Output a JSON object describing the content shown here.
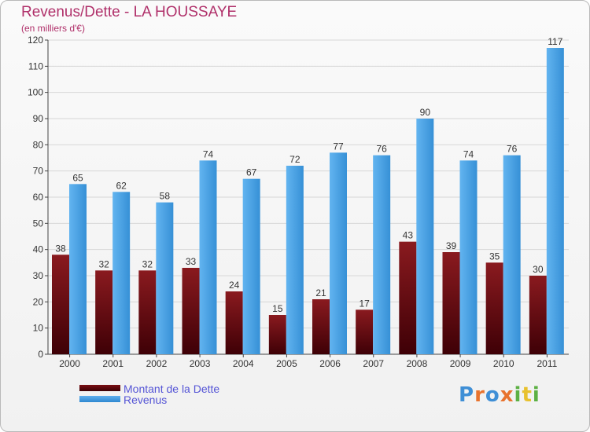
{
  "chart_data": {
    "type": "bar",
    "title": "Revenus/Dette - LA HOUSSAYE",
    "subtitle": "(en milliers d'€)",
    "categories": [
      "2000",
      "2001",
      "2002",
      "2003",
      "2004",
      "2005",
      "2006",
      "2007",
      "2008",
      "2009",
      "2010",
      "2011"
    ],
    "series": [
      {
        "name": "Montant de la Dette",
        "values": [
          38,
          32,
          32,
          33,
          24,
          15,
          21,
          17,
          43,
          39,
          35,
          30
        ],
        "color": "#6a0a10"
      },
      {
        "name": "Revenus",
        "values": [
          65,
          62,
          58,
          74,
          67,
          72,
          77,
          76,
          90,
          74,
          76,
          117
        ],
        "color": "#4aa3e8"
      }
    ],
    "ylim": [
      0,
      120
    ],
    "yticks": [
      0,
      10,
      20,
      30,
      40,
      50,
      60,
      70,
      80,
      90,
      100,
      110,
      120
    ],
    "grid": true,
    "legend_position": "bottom-left"
  },
  "legend": {
    "debt_label": "Montant de la Dette",
    "revenue_label": "Revenus"
  },
  "logo": {
    "text": "Proxiti",
    "letters": [
      "P",
      "r",
      "o",
      "x",
      "i",
      "t",
      "i"
    ],
    "colors": [
      "#3f8fd6",
      "#e8732e",
      "#3f8fd6",
      "#e8732e",
      "#5cb043",
      "#e8c12e",
      "#5cb043"
    ]
  }
}
